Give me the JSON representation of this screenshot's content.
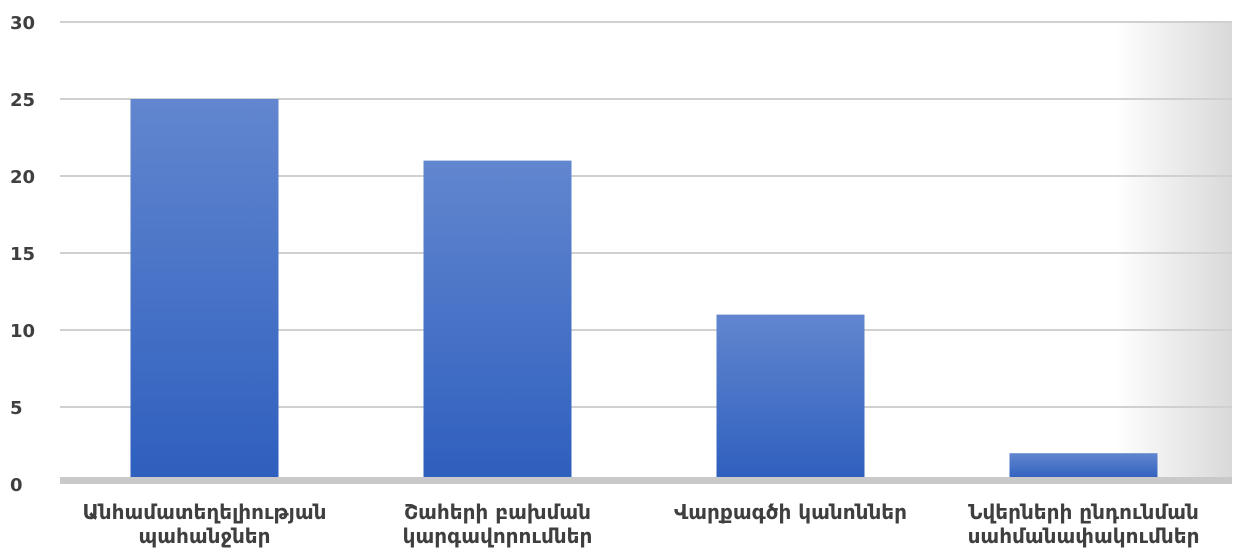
{
  "chart_data": {
    "type": "bar",
    "title": "",
    "xlabel": "",
    "ylabel": "",
    "categories": [
      "Անհամատեղելիության պահանջներ",
      "Շահերի բախման կարգավորումներ",
      "Վարքագծի կանոններ",
      "Նվերների ընդունման սահմանափակումներ"
    ],
    "values": [
      25,
      21,
      11,
      2
    ],
    "ylim": [
      0,
      30
    ],
    "yticks": [
      "0",
      "5",
      "10",
      "15",
      "20",
      "25",
      "30"
    ],
    "grid": true,
    "legend": "none",
    "colors": {
      "bar_top": "#6286cf",
      "bar_bottom": "#2e5fbe",
      "grid": "#d0d0d0",
      "plot_bg_edge": "#d9d9d9"
    }
  }
}
